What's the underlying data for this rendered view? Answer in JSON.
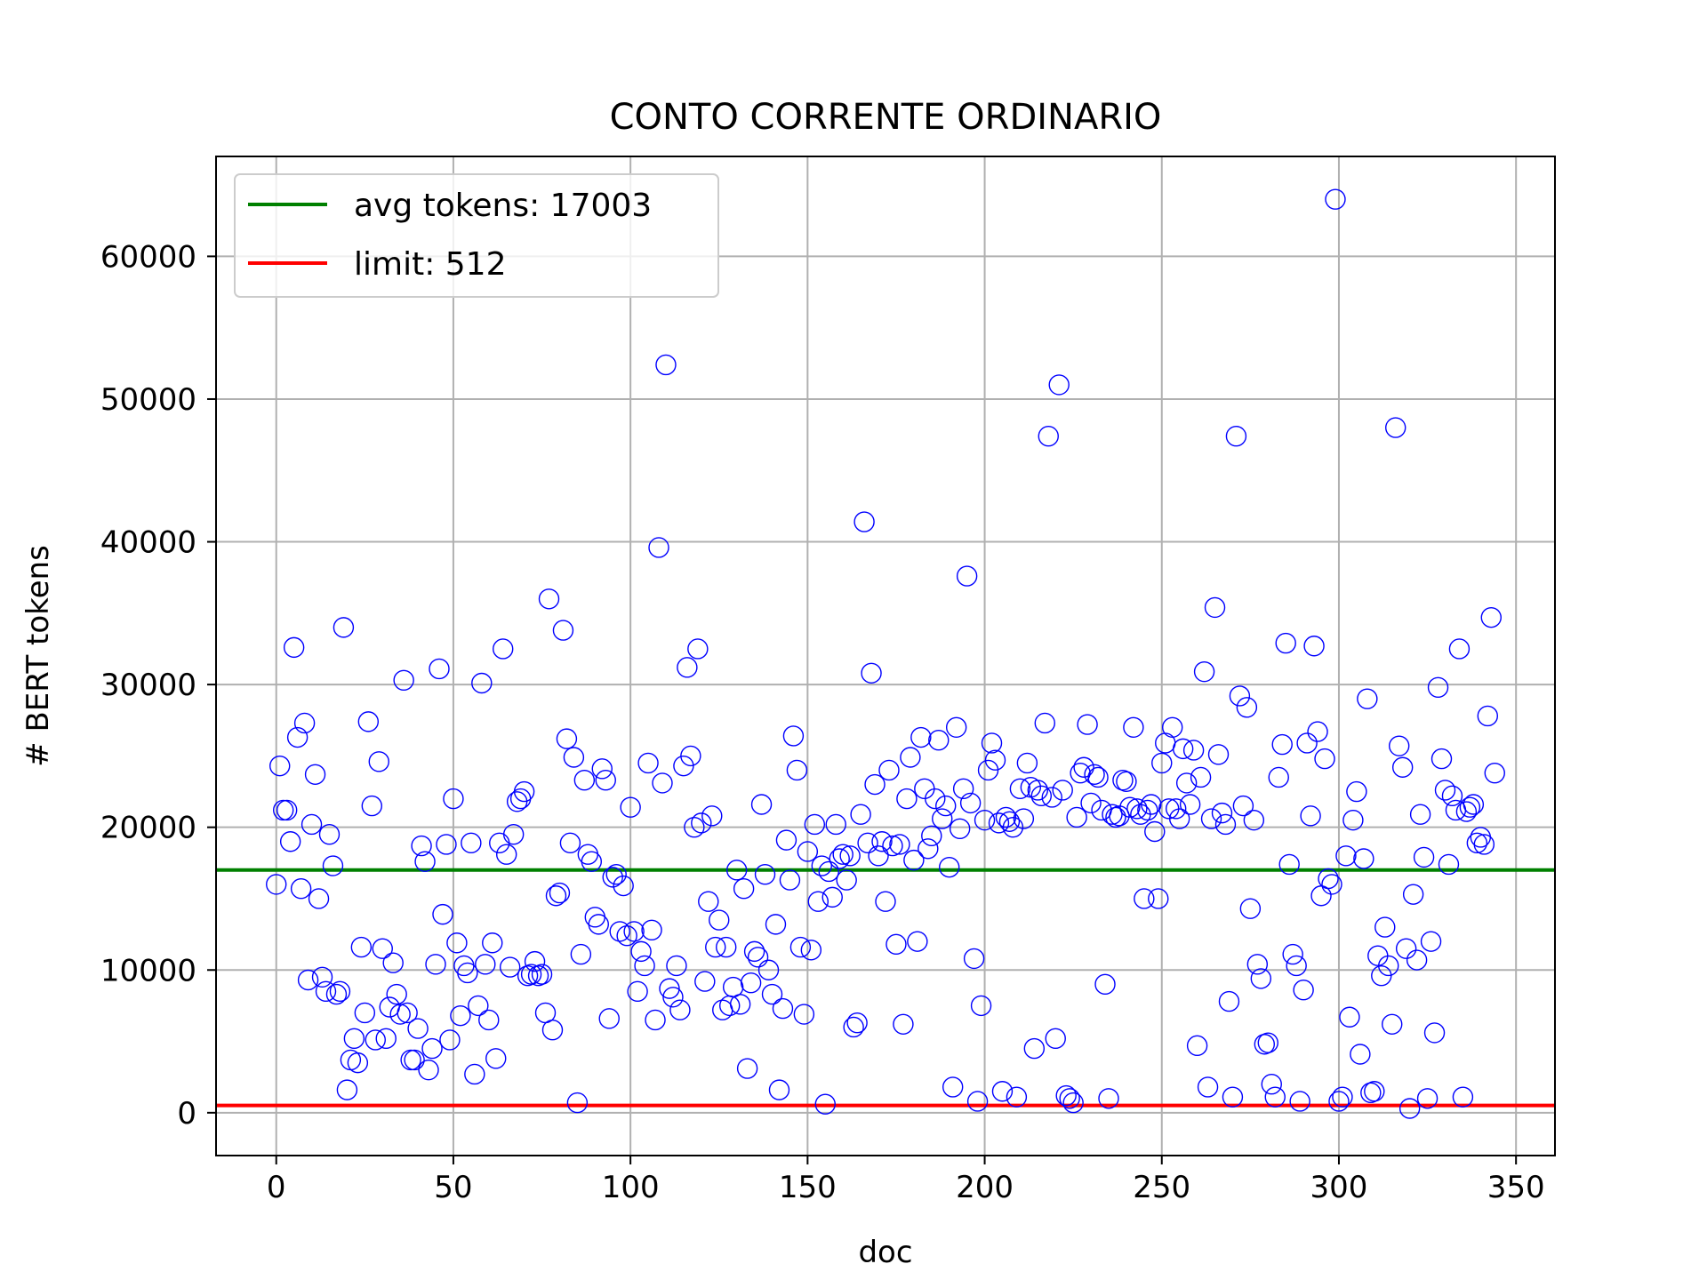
{
  "chart_data": {
    "type": "scatter",
    "title": "CONTO CORRENTE ORDINARIO",
    "xlabel": "doc",
    "ylabel": "# BERT tokens",
    "xlim": [
      -17,
      361
    ],
    "ylim": [
      -3000,
      67000
    ],
    "xticks": [
      0,
      50,
      100,
      150,
      200,
      250,
      300,
      350
    ],
    "yticks": [
      0,
      10000,
      20000,
      30000,
      40000,
      50000,
      60000
    ],
    "grid": true,
    "legend": "top-left",
    "colors": {
      "points": "#0000ff",
      "avg": "#008000",
      "limit": "#ff0000",
      "grid": "#b0b0b0"
    },
    "lines": [
      {
        "name": "avg tokens: 17003",
        "y": 17003,
        "color": "#008000"
      },
      {
        "name": "limit: 512",
        "y": 512,
        "color": "#ff0000"
      }
    ],
    "x": [
      0,
      1,
      2,
      3,
      4,
      5,
      6,
      7,
      8,
      9,
      10,
      11,
      12,
      13,
      14,
      15,
      16,
      17,
      18,
      19,
      20,
      21,
      22,
      23,
      24,
      25,
      26,
      27,
      28,
      29,
      30,
      31,
      32,
      33,
      34,
      35,
      36,
      37,
      38,
      39,
      40,
      41,
      42,
      43,
      44,
      45,
      46,
      47,
      48,
      49,
      50,
      51,
      52,
      53,
      54,
      55,
      56,
      57,
      58,
      59,
      60,
      61,
      62,
      63,
      64,
      65,
      66,
      67,
      68,
      69,
      70,
      71,
      72,
      73,
      74,
      75,
      76,
      77,
      78,
      79,
      80,
      81,
      82,
      83,
      84,
      85,
      86,
      87,
      88,
      89,
      90,
      91,
      92,
      93,
      94,
      95,
      96,
      97,
      98,
      99,
      100,
      101,
      102,
      103,
      104,
      105,
      106,
      107,
      108,
      109,
      110,
      111,
      112,
      113,
      114,
      115,
      116,
      117,
      118,
      119,
      120,
      121,
      122,
      123,
      124,
      125,
      126,
      127,
      128,
      129,
      130,
      131,
      132,
      133,
      134,
      135,
      136,
      137,
      138,
      139,
      140,
      141,
      142,
      143,
      144,
      145,
      146,
      147,
      148,
      149,
      150,
      151,
      152,
      153,
      154,
      155,
      156,
      157,
      158,
      159,
      160,
      161,
      162,
      163,
      164,
      165,
      166,
      167,
      168,
      169,
      170,
      171,
      172,
      173,
      174,
      175,
      176,
      177,
      178,
      179,
      180,
      181,
      182,
      183,
      184,
      185,
      186,
      187,
      188,
      189,
      190,
      191,
      192,
      193,
      194,
      195,
      196,
      197,
      198,
      199,
      200,
      201,
      202,
      203,
      204,
      205,
      206,
      207,
      208,
      209,
      210,
      211,
      212,
      213,
      214,
      215,
      216,
      217,
      218,
      219,
      220,
      221,
      222,
      223,
      224,
      225,
      226,
      227,
      228,
      229,
      230,
      231,
      232,
      233,
      234,
      235,
      236,
      237,
      238,
      239,
      240,
      241,
      242,
      243,
      244,
      245,
      246,
      247,
      248,
      249,
      250,
      251,
      252,
      253,
      254,
      255,
      256,
      257,
      258,
      259,
      260,
      261,
      262,
      263,
      264,
      265,
      266,
      267,
      268,
      269,
      270,
      271,
      272,
      273,
      274,
      275,
      276,
      277,
      278,
      279,
      280,
      281,
      282,
      283,
      284,
      285,
      286,
      287,
      288,
      289,
      290,
      291,
      292,
      293,
      294,
      295,
      296,
      297,
      298,
      299,
      300,
      301,
      302,
      303,
      304,
      305,
      306,
      307,
      308,
      309,
      310,
      311,
      312,
      313,
      314,
      315,
      316,
      317,
      318,
      319,
      320,
      321,
      322,
      323,
      324,
      325,
      326,
      327,
      328,
      329,
      330,
      331,
      332,
      333,
      334,
      335,
      336,
      337,
      338,
      339,
      340,
      341,
      342,
      343,
      344
    ],
    "y": [
      16000,
      24300,
      21200,
      21200,
      19000,
      32600,
      26300,
      15700,
      27300,
      9300,
      20200,
      23700,
      15000,
      9500,
      8500,
      19500,
      17300,
      8300,
      8500,
      34000,
      1600,
      3700,
      5200,
      3500,
      11600,
      7000,
      27400,
      21500,
      5100,
      24600,
      11500,
      5200,
      7400,
      10500,
      8300,
      6900,
      30300,
      7000,
      3700,
      3700,
      5900,
      18700,
      17600,
      3000,
      4500,
      10400,
      31100,
      13900,
      18800,
      5100,
      22000,
      11900,
      6800,
      10300,
      9800,
      18900,
      2700,
      7500,
      30100,
      10400,
      6500,
      11900,
      3800,
      18900,
      32500,
      18100,
      10200,
      19500,
      21800,
      22000,
      22500,
      9600,
      9700,
      10600,
      9600,
      9700,
      7000,
      36000,
      5800,
      15200,
      15400,
      33800,
      26200,
      18900,
      24900,
      700,
      11100,
      23300,
      18100,
      17600,
      13700,
      13200,
      24100,
      23300,
      6600,
      16500,
      16700,
      12700,
      15900,
      12400,
      21400,
      12700,
      8500,
      11300,
      10300,
      24500,
      12800,
      6500,
      39600,
      23100,
      52400,
      8700,
      8100,
      10300,
      7200,
      24300,
      31200,
      25000,
      20000,
      32500,
      20300,
      9200,
      14800,
      20800,
      11600,
      13500,
      7200,
      11600,
      7500,
      8800,
      17000,
      7600,
      15700,
      3100,
      9100,
      11300,
      10900,
      21600,
      16700,
      10000,
      8300,
      13200,
      1600,
      7300,
      19100,
      16300,
      26400,
      24000,
      11600,
      6900,
      18300,
      11400,
      20200,
      14800,
      17300,
      600,
      16900,
      15100,
      20200,
      17800,
      18100,
      16300,
      18000,
      6000,
      6300,
      20900,
      41400,
      18900,
      30800,
      23000,
      18000,
      19000,
      14800,
      24000,
      18700,
      11800,
      18800,
      6200,
      22000,
      24900,
      17700,
      12000,
      26300,
      22700,
      18500,
      19400,
      22000,
      26100,
      20600,
      21500,
      17200,
      1800,
      27000,
      19900,
      22700,
      37600,
      21700,
      10800,
      800,
      7500,
      20500,
      24000,
      25900,
      24700,
      20300,
      1500,
      20700,
      20400,
      20000,
      1100,
      22700,
      20600,
      24500,
      22800,
      4500,
      22600,
      22200,
      27300,
      47400,
      22100,
      5200,
      51000,
      22600,
      1200,
      1000,
      700,
      20700,
      23800,
      24200,
      27200,
      21700,
      23700,
      23500,
      21200,
      9000,
      1000,
      20900,
      20700,
      20800,
      23300,
      23200,
      21400,
      27000,
      21300,
      20900,
      15000,
      21200,
      21600,
      19700,
      15000,
      24500,
      25900,
      21300,
      27000,
      21300,
      20600,
      25500,
      23100,
      21600,
      25400,
      4700,
      23500,
      30900,
      1800,
      20600,
      35400,
      25100,
      21000,
      20200,
      7800,
      1100,
      47400,
      29200,
      21500,
      28400,
      14300,
      20500,
      10400,
      9400,
      4800,
      4900,
      2000,
      1100,
      23500,
      25800,
      32900,
      17400,
      11100,
      10300,
      800,
      8600,
      25900,
      20800,
      32700,
      26700,
      15200,
      24800,
      16400,
      16000,
      64000,
      800,
      1100,
      18000,
      6700,
      20500,
      22500,
      4100,
      17800,
      29000,
      1400,
      1500,
      11000,
      9600,
      13000,
      10300,
      6200,
      48000,
      25700,
      24200,
      11500,
      300,
      15300,
      10700,
      20900,
      17900,
      1000,
      12000,
      5600,
      29800,
      24800,
      22600,
      17400,
      22200,
      21200,
      32500,
      1100,
      21100,
      21400,
      21600,
      18900,
      19300,
      18800,
      27800,
      34700,
      23800
    ]
  }
}
